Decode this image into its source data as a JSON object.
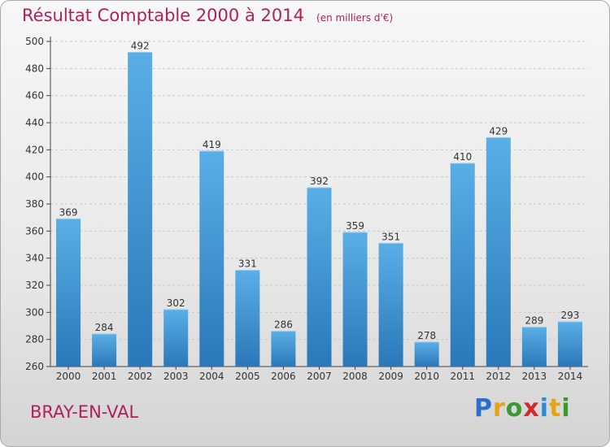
{
  "title": "Résultat Comptable 2000 à 2014",
  "unit_note": "(en milliers d'€)",
  "commune": "BRAY-EN-VAL",
  "brand": {
    "letters": [
      "P",
      "r",
      "o",
      "x",
      "i",
      "t",
      "i"
    ],
    "colors": [
      "#2a6fc9",
      "#e8a21a",
      "#3a9a2f",
      "#d42a2a",
      "#2a8ad4",
      "#e8a21a",
      "#3a9a2f"
    ]
  },
  "colors": {
    "bar_top": "#5aaee6",
    "bar_bottom": "#2a78b8",
    "title": "#b0205d"
  },
  "chart_data": {
    "type": "bar",
    "categories": [
      "2000",
      "2001",
      "2002",
      "2003",
      "2004",
      "2005",
      "2006",
      "2007",
      "2008",
      "2009",
      "2010",
      "2011",
      "2012",
      "2013",
      "2014"
    ],
    "values": [
      369,
      284,
      492,
      302,
      419,
      331,
      286,
      392,
      359,
      351,
      278,
      410,
      429,
      289,
      293
    ],
    "ylim": [
      260,
      500
    ],
    "yticks": [
      260,
      280,
      300,
      320,
      340,
      360,
      380,
      400,
      420,
      440,
      460,
      480,
      500
    ],
    "grid": true,
    "data_labels": true
  }
}
